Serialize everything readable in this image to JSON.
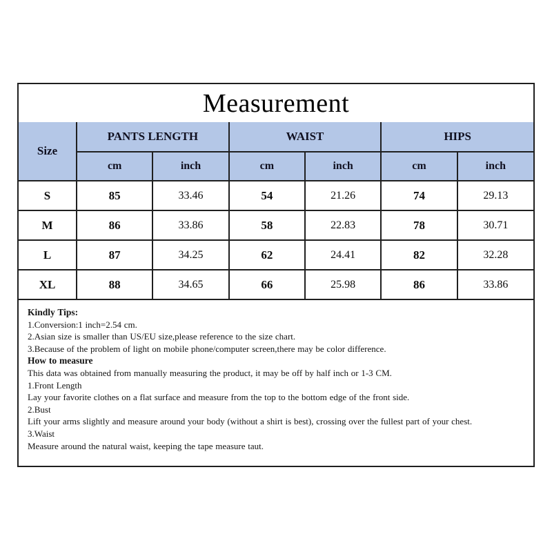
{
  "title": "Measurement",
  "table": {
    "size_header": "Size",
    "groups": [
      {
        "label": "PANTS LENGTH"
      },
      {
        "label": "WAIST"
      },
      {
        "label": "HIPS"
      }
    ],
    "units": [
      "cm",
      "inch"
    ],
    "rows": [
      {
        "size": "S",
        "values": [
          "85",
          "33.46",
          "54",
          "21.26",
          "74",
          "29.13"
        ]
      },
      {
        "size": "M",
        "values": [
          "86",
          "33.86",
          "58",
          "22.83",
          "78",
          "30.71"
        ]
      },
      {
        "size": "L",
        "values": [
          "87",
          "34.25",
          "62",
          "24.41",
          "82",
          "32.28"
        ]
      },
      {
        "size": "XL",
        "values": [
          "88",
          "34.65",
          "66",
          "25.98",
          "86",
          "33.86"
        ]
      }
    ]
  },
  "tips": {
    "lines": [
      {
        "text": "Kindly Tips:",
        "bold": true
      },
      {
        "text": "1.Conversion:1 inch=2.54 cm.",
        "bold": false
      },
      {
        "text": "2.Asian size is smaller than US/EU size,please reference to the size chart.",
        "bold": false
      },
      {
        "text": "3.Because of the problem of light on mobile phone/computer screen,there may be color difference.",
        "bold": false
      },
      {
        "text": "How to measure",
        "bold": true
      },
      {
        "text": "This data was obtained from manually measuring the product, it may be off by half inch or 1-3 CM.",
        "bold": false
      },
      {
        "text": "1.Front Length",
        "bold": false
      },
      {
        "text": "Lay your favorite clothes on a flat surface and measure from the top to the bottom edge of the front side.",
        "bold": false
      },
      {
        "text": "2.Bust",
        "bold": false
      },
      {
        "text": "Lift your arms slightly and measure around your body (without a shirt is best), crossing over the fullest part of your chest.",
        "bold": false
      },
      {
        "text": "3.Waist",
        "bold": false
      },
      {
        "text": "Measure around the natural waist, keeping the tape measure taut.",
        "bold": false
      }
    ]
  },
  "colors": {
    "header_bg": "#b4c7e7",
    "border": "#1f1f1f",
    "text": "#0d0d0d",
    "background": "#ffffff"
  },
  "chart_data": {
    "type": "table",
    "title": "Measurement",
    "columns": [
      "Size",
      "PANTS LENGTH cm",
      "PANTS LENGTH inch",
      "WAIST cm",
      "WAIST inch",
      "HIPS cm",
      "HIPS inch"
    ],
    "rows": [
      [
        "S",
        85,
        33.46,
        54,
        21.26,
        74,
        29.13
      ],
      [
        "M",
        86,
        33.86,
        58,
        22.83,
        78,
        30.71
      ],
      [
        "L",
        87,
        34.25,
        62,
        24.41,
        82,
        32.28
      ],
      [
        "XL",
        88,
        34.65,
        66,
        25.98,
        86,
        33.86
      ]
    ]
  }
}
